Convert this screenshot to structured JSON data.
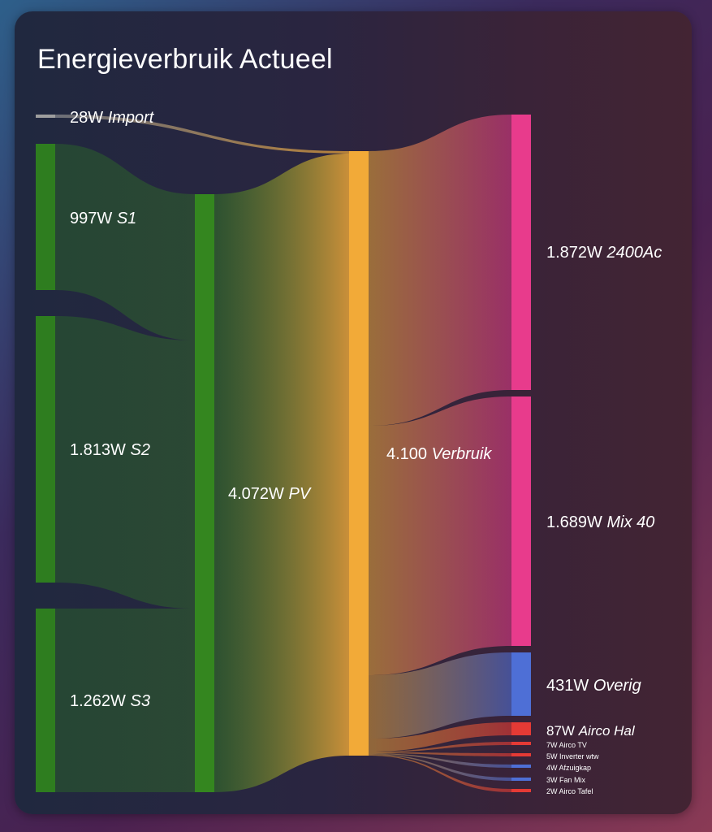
{
  "card": {
    "title": "Energieverbruik Actueel"
  },
  "colors": {
    "solar": "#2e7d1f",
    "pv": "#34861f",
    "import": "#9e9e9e",
    "total": "#f2aa38",
    "consumer_pink": "#e83b8c",
    "consumer_blue": "#4e6fd6",
    "consumer_red": "#e53a35"
  },
  "nodes": {
    "import": {
      "value": "28W",
      "name": "Import"
    },
    "s1": {
      "value": "997W",
      "name": "S1"
    },
    "s2": {
      "value": "1.813W",
      "name": "S2"
    },
    "s3": {
      "value": "1.262W",
      "name": "S3"
    },
    "pv": {
      "value": "4.072W",
      "name": "PV"
    },
    "verbruik": {
      "value": "4.100",
      "name": "Verbruik"
    },
    "c2400": {
      "value": "1.872W",
      "name": "2400Ac"
    },
    "mix40": {
      "value": "1.689W",
      "name": "Mix 40"
    },
    "overig": {
      "value": "431W",
      "name": "Overig"
    },
    "airco_hal": {
      "value": "87W",
      "name": "Airco Hal"
    },
    "airco_tv": {
      "value": "7W",
      "name": "Airco TV"
    },
    "inverter_wtw": {
      "value": "5W",
      "name": "Inverter wtw"
    },
    "afzuigkap": {
      "value": "4W",
      "name": "Afzuigkap"
    },
    "fan_mix": {
      "value": "3W",
      "name": "Fan Mix"
    },
    "airco_tafel": {
      "value": "2W",
      "name": "Airco Tafel"
    }
  }
}
